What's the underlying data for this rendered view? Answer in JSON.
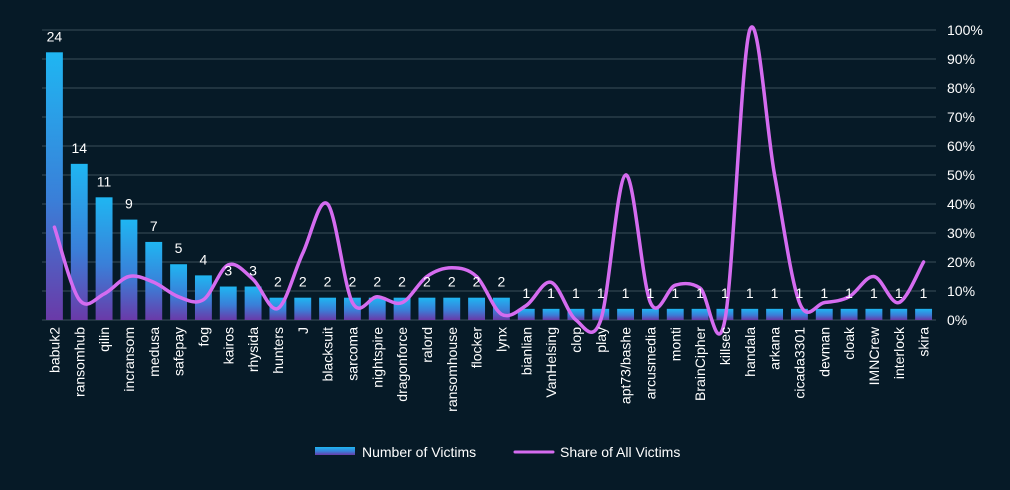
{
  "chart_data": {
    "type": "bar",
    "categories": [
      "babuk2",
      "ransomhub",
      "qilin",
      "incransom",
      "medusa",
      "safepay",
      "fog",
      "kairos",
      "rhysida",
      "hunters",
      "J",
      "blacksuit",
      "sarcoma",
      "nightspire",
      "dragonforce",
      "ralord",
      "ransomhouse",
      "flocker",
      "lynx",
      "bianlian",
      "VanHelsing",
      "clop",
      "play",
      "apt73/bashe",
      "arcusmedia",
      "monti",
      "BrainCipher",
      "killsec",
      "handala",
      "arkana",
      "cicada3301",
      "devman",
      "cloak",
      "IMNCrew",
      "interlock",
      "skira"
    ],
    "series": [
      {
        "name": "Number of Victims",
        "type": "bar",
        "axis": "left",
        "values": [
          24,
          14,
          11,
          9,
          7,
          5,
          4,
          3,
          3,
          2,
          2,
          2,
          2,
          2,
          2,
          2,
          2,
          2,
          2,
          1,
          1,
          1,
          1,
          1,
          1,
          1,
          1,
          1,
          1,
          1,
          1,
          1,
          1,
          1,
          1,
          1
        ]
      },
      {
        "name": "Share of All Victims",
        "type": "line",
        "axis": "right",
        "values": [
          32,
          7,
          9,
          15,
          13,
          8,
          7,
          19,
          14,
          4,
          23,
          40,
          6,
          8,
          6,
          15,
          18,
          15,
          2,
          5,
          13,
          0,
          0,
          50,
          6,
          12,
          11,
          0,
          100,
          50,
          6,
          6,
          8,
          15,
          6,
          20
        ]
      }
    ],
    "y_left_lim": [
      0,
      26
    ],
    "y_right_lim": [
      0,
      100
    ],
    "y_right_ticks": [
      "0%",
      "10%",
      "20%",
      "30%",
      "40%",
      "50%",
      "60%",
      "70%",
      "80%",
      "90%",
      "100%"
    ],
    "grid": true,
    "legend_position": "bottom",
    "colors": {
      "background": "#061a27",
      "bar_top": "#1fb6f2",
      "bar_bottom": "#6a3aa8",
      "line": "#d56cf0",
      "grid": "#3a4d5a",
      "text": "#ffffff"
    }
  },
  "legend": {
    "bar_label": "Number of Victims",
    "line_label": "Share of All Victims"
  }
}
